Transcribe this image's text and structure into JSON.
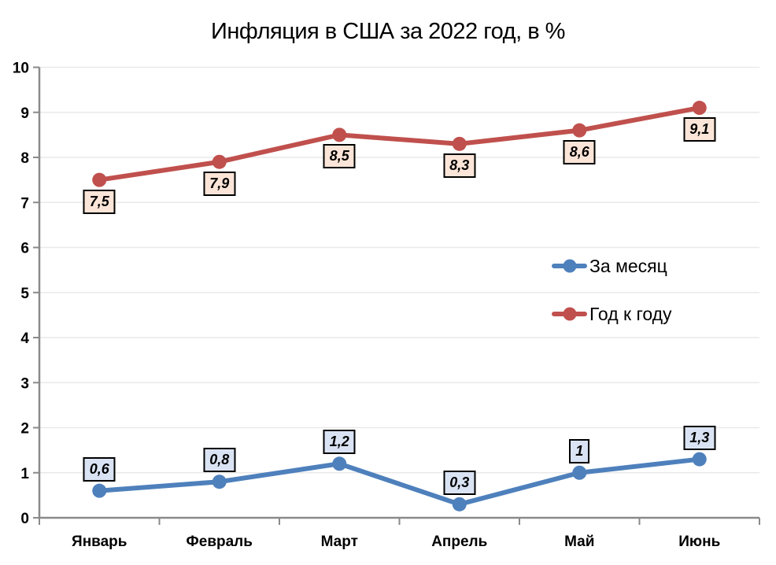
{
  "title": "Инфляция в США за 2022 год, в %",
  "chart_data": {
    "type": "line",
    "categories": [
      "Январь",
      "Февраль",
      "Март",
      "Апрель",
      "Май",
      "Июнь"
    ],
    "series": [
      {
        "name": "За месяц",
        "color": "#4E80BC",
        "label_fill": "#DAE3F3",
        "values": [
          0.6,
          0.8,
          1.2,
          0.3,
          1,
          1.3
        ],
        "labels": [
          "0,6",
          "0,8",
          "1,2",
          "0,3",
          "1",
          "1,3"
        ],
        "label_position": "above"
      },
      {
        "name": "Год к году",
        "color": "#C0504D",
        "label_fill": "#FBE5D8",
        "values": [
          7.5,
          7.9,
          8.5,
          8.3,
          8.6,
          9.1
        ],
        "labels": [
          "7,5",
          "7,9",
          "8,5",
          "8,3",
          "8,6",
          "9,1"
        ],
        "label_position": "below"
      }
    ],
    "ylim": [
      0,
      10
    ],
    "ytick_step": 1,
    "yticks": [
      "0",
      "1",
      "2",
      "3",
      "4",
      "5",
      "6",
      "7",
      "8",
      "9",
      "10"
    ],
    "grid": true,
    "legend_position": "middle-right",
    "axis_color": "#8A8A8A",
    "grid_color": "#E9E9E9",
    "label_border_color": "#000000"
  }
}
